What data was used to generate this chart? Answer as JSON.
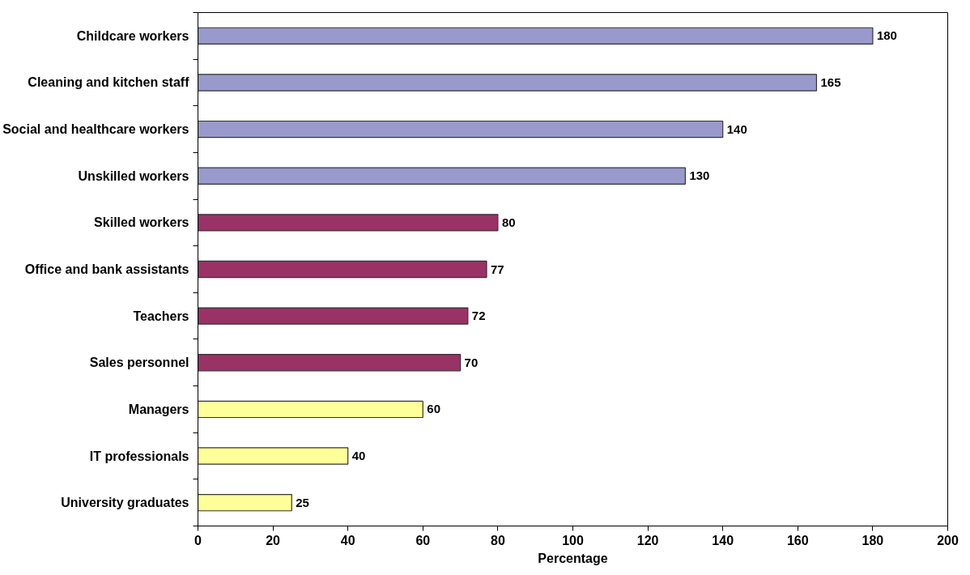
{
  "chart_data": {
    "type": "bar",
    "orientation": "horizontal",
    "xlabel": "Percentage",
    "categories": [
      "Childcare workers",
      "Cleaning and kitchen staff",
      "Social and healthcare workers",
      "Unskilled workers",
      "Skilled workers",
      "Office and bank assistants",
      "Teachers",
      "Sales personnel",
      "Managers",
      "IT professionals",
      "University graduates"
    ],
    "values": [
      180,
      165,
      140,
      130,
      80,
      77,
      72,
      70,
      60,
      40,
      25
    ],
    "colors": [
      "#9999cc",
      "#9999cc",
      "#9999cc",
      "#9999cc",
      "#993366",
      "#993366",
      "#993366",
      "#993366",
      "#ffff99",
      "#ffff99",
      "#ffff99"
    ],
    "xlim": [
      0,
      200
    ],
    "xticks": [
      0,
      20,
      40,
      60,
      80,
      100,
      120,
      140,
      160,
      180,
      200
    ],
    "data_labels": true,
    "grid": false
  }
}
